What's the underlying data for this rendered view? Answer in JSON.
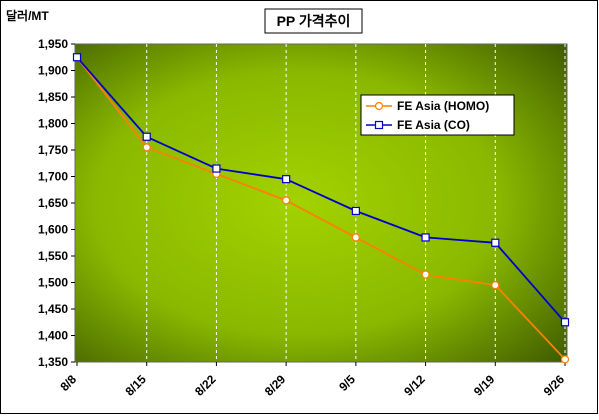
{
  "chart_data": {
    "type": "line",
    "title": "PP 가격추이",
    "ylabel": "달러/MT",
    "xlabel": "",
    "categories": [
      "8/8",
      "8/15",
      "8/22",
      "8/29",
      "9/5",
      "9/12",
      "9/19",
      "9/26"
    ],
    "ylim": [
      1350,
      1950
    ],
    "yticks": [
      1350,
      1400,
      1450,
      1500,
      1550,
      1600,
      1650,
      1700,
      1750,
      1800,
      1850,
      1900,
      1950
    ],
    "ytick_labels": [
      "1,350",
      "1,400",
      "1,450",
      "1,500",
      "1,550",
      "1,600",
      "1,650",
      "1,700",
      "1,750",
      "1,800",
      "1,850",
      "1,900",
      "1,950"
    ],
    "grid": "vertical dashed",
    "legend_position": "top-right",
    "series": [
      {
        "name": "FE Asia (HOMO)",
        "color": "#ff7f00",
        "marker": "circle",
        "values": [
          1925,
          1755,
          1705,
          1655,
          1585,
          1515,
          1495,
          1355
        ]
      },
      {
        "name": "FE Asia (CO)",
        "color": "#0000cc",
        "marker": "square",
        "values": [
          1925,
          1775,
          1715,
          1695,
          1635,
          1585,
          1575,
          1425
        ]
      }
    ],
    "colors": {
      "plot_gradient_inner": "#a3d200",
      "plot_gradient_outer": "#3c5800",
      "frame": "#000000"
    }
  }
}
